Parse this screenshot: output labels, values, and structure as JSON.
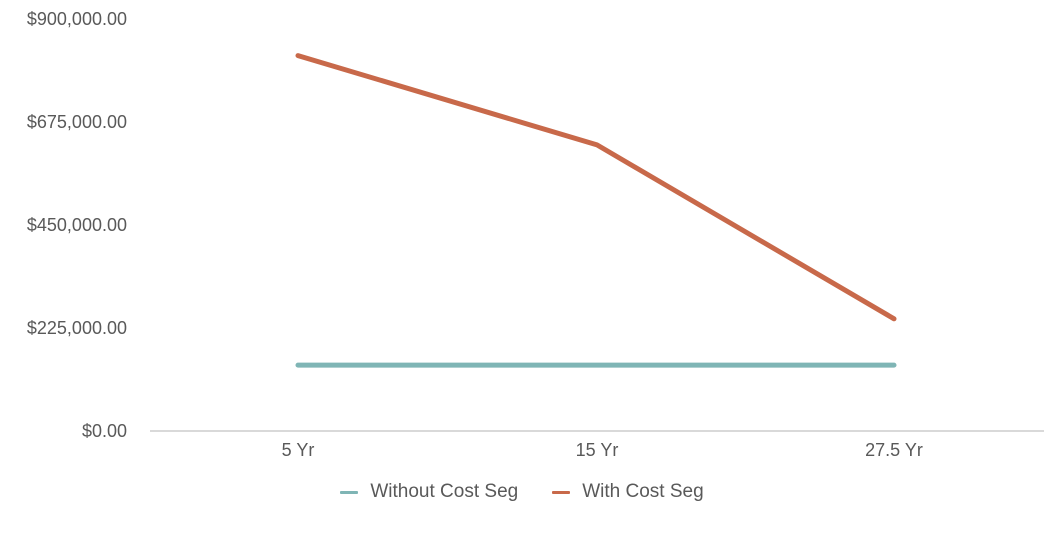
{
  "chart_data": {
    "type": "line",
    "title": "",
    "xlabel": "",
    "ylabel": "",
    "categories": [
      "5 Yr",
      "15 Yr",
      "27.5 Yr"
    ],
    "series": [
      {
        "name": "Without Cost Seg",
        "color": "#7fb5b5",
        "values": [
          144000,
          144000,
          144000
        ]
      },
      {
        "name": "With Cost Seg",
        "color": "#c8694a",
        "values": [
          820000,
          625000,
          245000
        ]
      }
    ],
    "ylim": [
      0,
      900000
    ],
    "yticks": [
      0,
      225000,
      450000,
      675000,
      900000
    ],
    "ytick_labels": [
      "$0.00",
      "$225,000.00",
      "$450,000.00",
      "$675,000.00",
      "$900,000.00"
    ],
    "grid": false,
    "legend_position": "bottom"
  },
  "legend": {
    "items": [
      {
        "label": "Without Cost Seg",
        "color": "#7fb5b5"
      },
      {
        "label": "With Cost Seg",
        "color": "#c8694a"
      }
    ]
  }
}
